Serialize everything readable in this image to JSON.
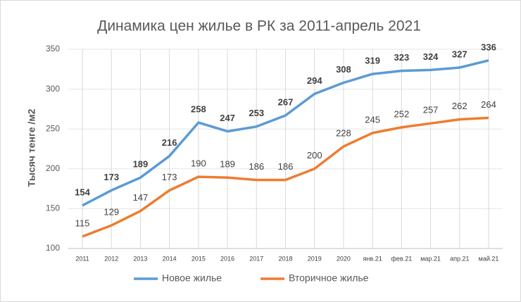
{
  "chart_data": {
    "type": "line",
    "title": "Динамика цен  жилье в РК за 2011-апрель 2021",
    "y_label": "Тысяч тенге /м2",
    "categories": [
      "2011",
      "2012",
      "2013",
      "2014",
      "2015",
      "2016",
      "2017",
      "2018",
      "2019",
      "2020",
      "янв.21",
      "фев.21",
      "мар.21",
      "апр.21",
      "май.21"
    ],
    "series": [
      {
        "name": "Новое жилье",
        "color": "#5b9bd5",
        "values": [
          154,
          173,
          189,
          216,
          258,
          247,
          253,
          267,
          294,
          308,
          319,
          323,
          324,
          327,
          336
        ]
      },
      {
        "name": "Вторичное жилье",
        "color": "#ed7d31",
        "values": [
          115,
          129,
          147,
          173,
          190,
          189,
          186,
          186,
          200,
          228,
          245,
          252,
          257,
          262,
          264
        ]
      }
    ],
    "ylim": [
      100,
      350
    ],
    "yticks": [
      100,
      150,
      200,
      250,
      300,
      350
    ],
    "grid": true,
    "legend": "bottom"
  }
}
